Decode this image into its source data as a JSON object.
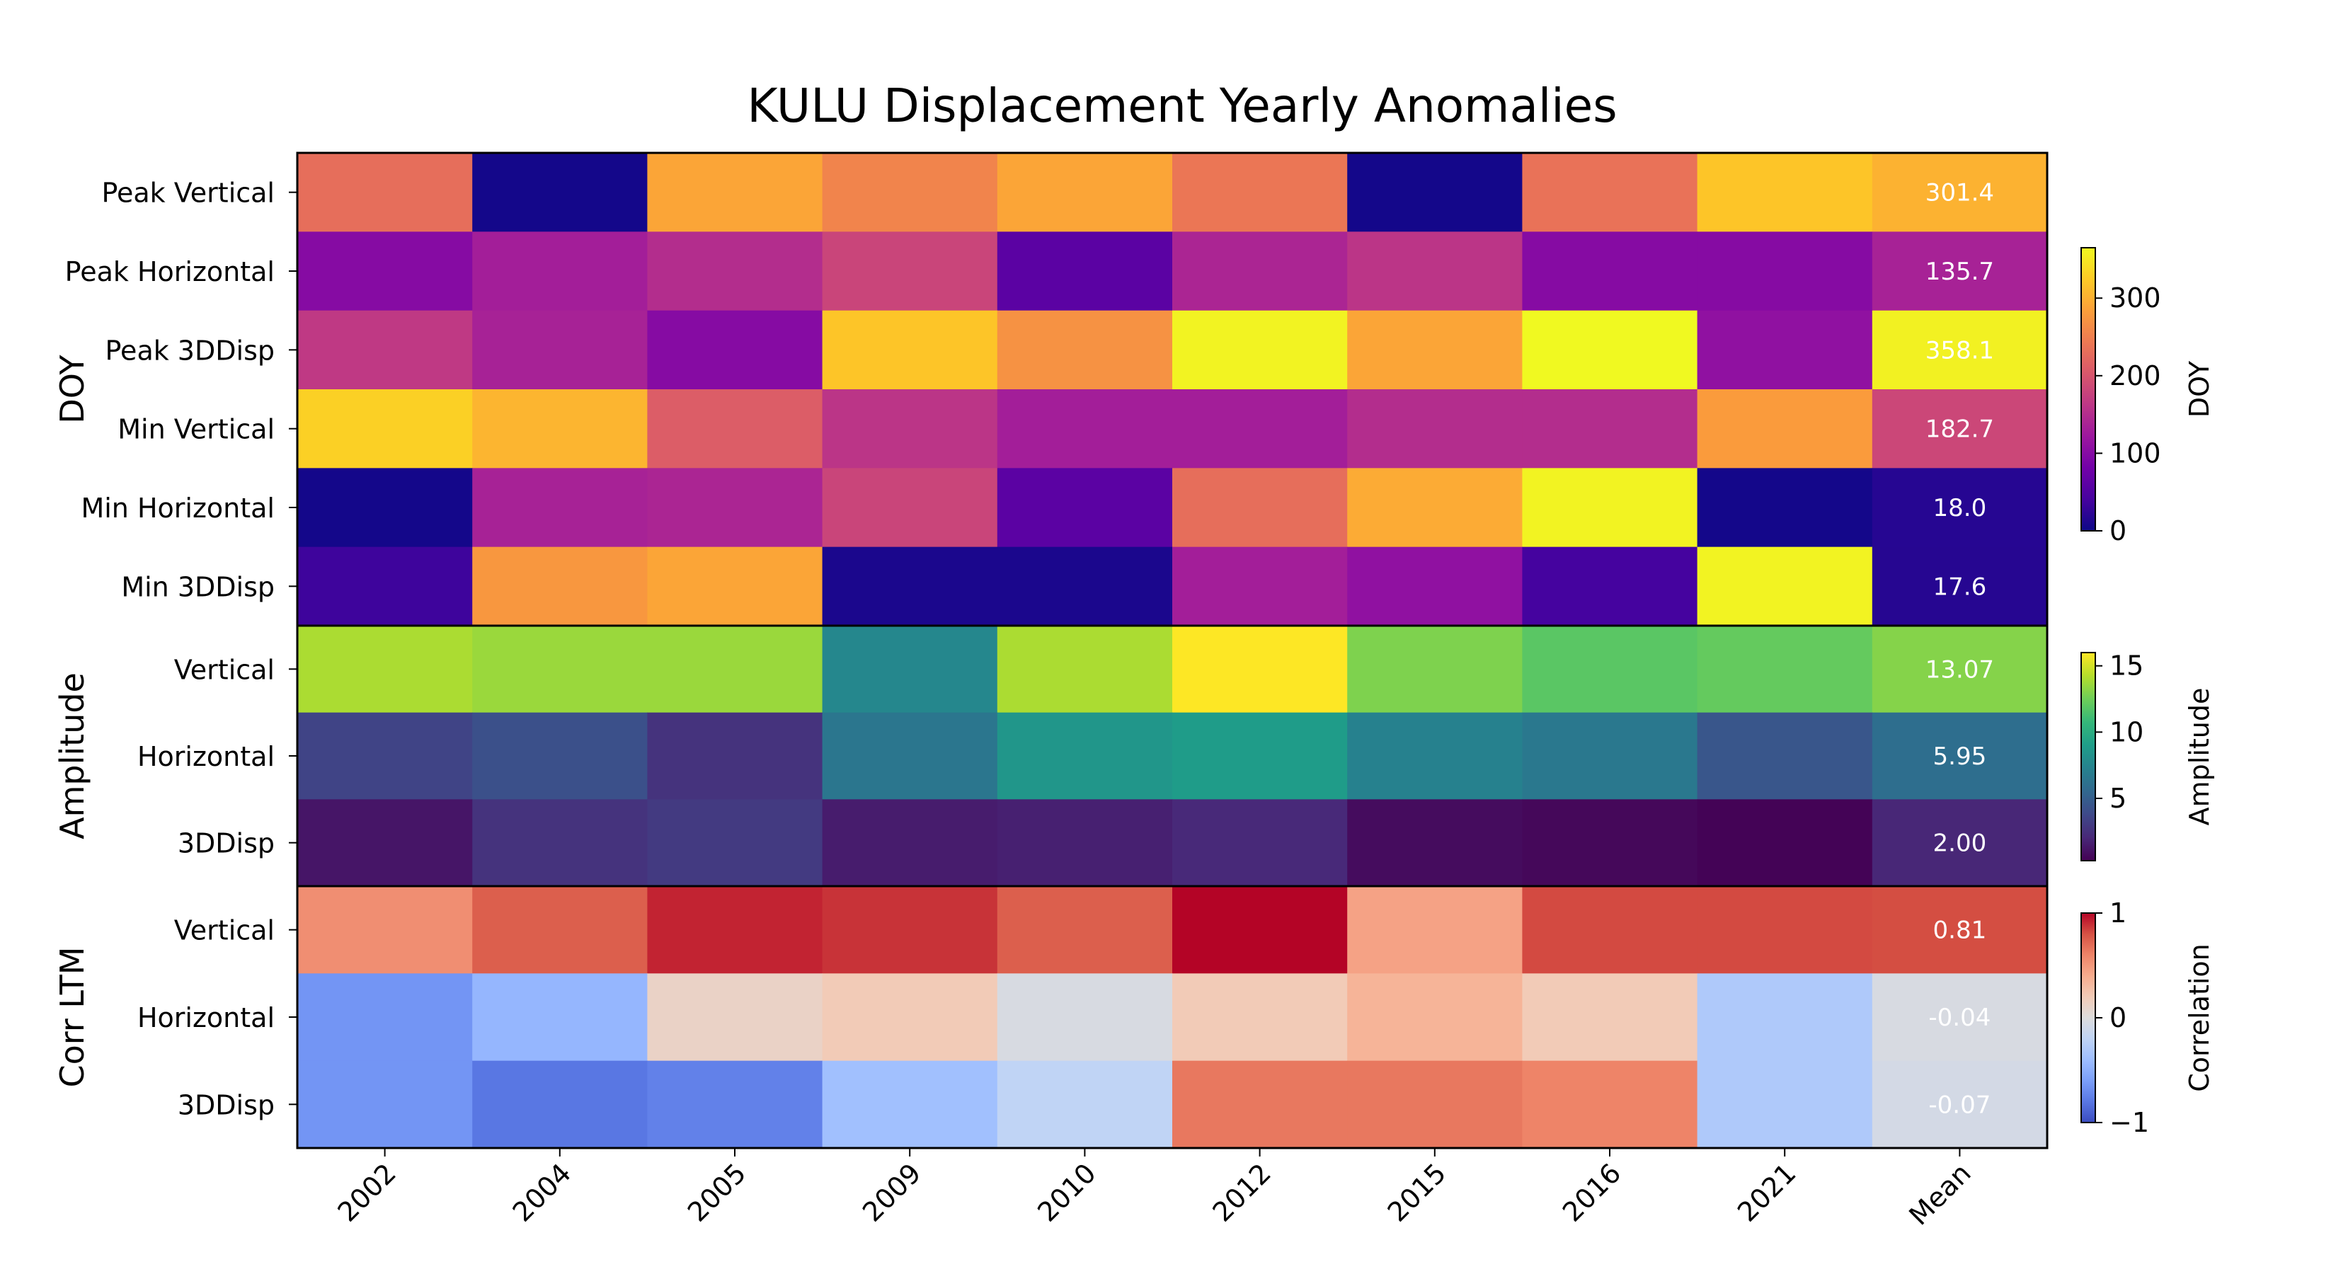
{
  "chart_data": {
    "type": "heatmap",
    "title": "KULU Displacement Yearly Anomalies",
    "columns": [
      "2002",
      "2004",
      "2005",
      "2009",
      "2010",
      "2012",
      "2015",
      "2016",
      "2021",
      "Mean"
    ],
    "groups": [
      {
        "label": "DOY",
        "colormap": "plasma",
        "colorbar": {
          "label": "DOY",
          "min": 0,
          "max": 365,
          "ticks": [
            "0",
            "100",
            "200",
            "300"
          ],
          "tick_values": [
            0,
            100,
            200,
            300
          ]
        },
        "rows": [
          {
            "label": "Peak Vertical",
            "values": [
              230,
              5,
              290,
              255,
              290,
              240,
              5,
              235,
              320,
              301.4
            ],
            "mean_label": "301.4"
          },
          {
            "label": "Peak Horizontal",
            "values": [
              100,
              130,
              150,
              180,
              60,
              140,
              160,
              100,
              100,
              135.7
            ],
            "mean_label": "135.7"
          },
          {
            "label": "Peak 3DDisp",
            "values": [
              165,
              135,
              100,
              320,
              270,
              360,
              290,
              365,
              110,
              358.1
            ],
            "mean_label": "358.1"
          },
          {
            "label": "Min Vertical",
            "values": [
              330,
              305,
              210,
              160,
              130,
              130,
              150,
              150,
              280,
              182.7
            ],
            "mean_label": "182.7"
          },
          {
            "label": "Min Horizontal",
            "values": [
              5,
              135,
              140,
              180,
              60,
              230,
              295,
              360,
              5,
              18.0
            ],
            "mean_label": "18.0"
          },
          {
            "label": "Min 3DDisp",
            "values": [
              35,
              275,
              290,
              10,
              10,
              130,
              110,
              40,
              360,
              17.6
            ],
            "mean_label": "17.6"
          }
        ]
      },
      {
        "label": "Amplitude",
        "colormap": "viridis",
        "colorbar": {
          "label": "Amplitude",
          "min": 0.3,
          "max": 16,
          "ticks": [
            "5",
            "10",
            "15"
          ],
          "tick_values": [
            5,
            10,
            15
          ]
        },
        "rows": [
          {
            "label": "Vertical",
            "values": [
              14.0,
              13.6,
              13.6,
              7.6,
              14.0,
              16.0,
              12.9,
              11.9,
              12.2,
              13.07
            ],
            "mean_label": "13.07"
          },
          {
            "label": "Horizontal",
            "values": [
              3.5,
              4.2,
              2.6,
              6.5,
              8.5,
              8.9,
              7.2,
              6.6,
              4.5,
              5.95
            ],
            "mean_label": "5.95"
          },
          {
            "label": "3DDisp",
            "values": [
              1.2,
              2.6,
              3.0,
              1.5,
              1.7,
              2.1,
              0.8,
              0.6,
              0.4,
              2.0
            ],
            "mean_label": "2.00"
          }
        ]
      },
      {
        "label": "Corr LTM",
        "colormap": "coolwarm",
        "colorbar": {
          "label": "Correlation",
          "min": -1,
          "max": 1,
          "ticks": [
            "1",
            "0",
            "−1"
          ],
          "tick_values": [
            1,
            0,
            -1
          ]
        },
        "rows": [
          {
            "label": "Vertical",
            "values": [
              0.55,
              0.75,
              0.92,
              0.88,
              0.75,
              1.0,
              0.45,
              0.82,
              0.82,
              0.81
            ],
            "mean_label": "0.81"
          },
          {
            "label": "Horizontal",
            "values": [
              -0.65,
              -0.45,
              0.12,
              0.2,
              -0.04,
              0.2,
              0.35,
              0.2,
              -0.3,
              -0.04
            ],
            "mean_label": "-0.04"
          },
          {
            "label": "3DDisp",
            "values": [
              -0.65,
              -0.8,
              -0.75,
              -0.38,
              -0.2,
              0.65,
              0.65,
              0.6,
              -0.3,
              -0.07
            ],
            "mean_label": "-0.07"
          }
        ]
      }
    ]
  }
}
